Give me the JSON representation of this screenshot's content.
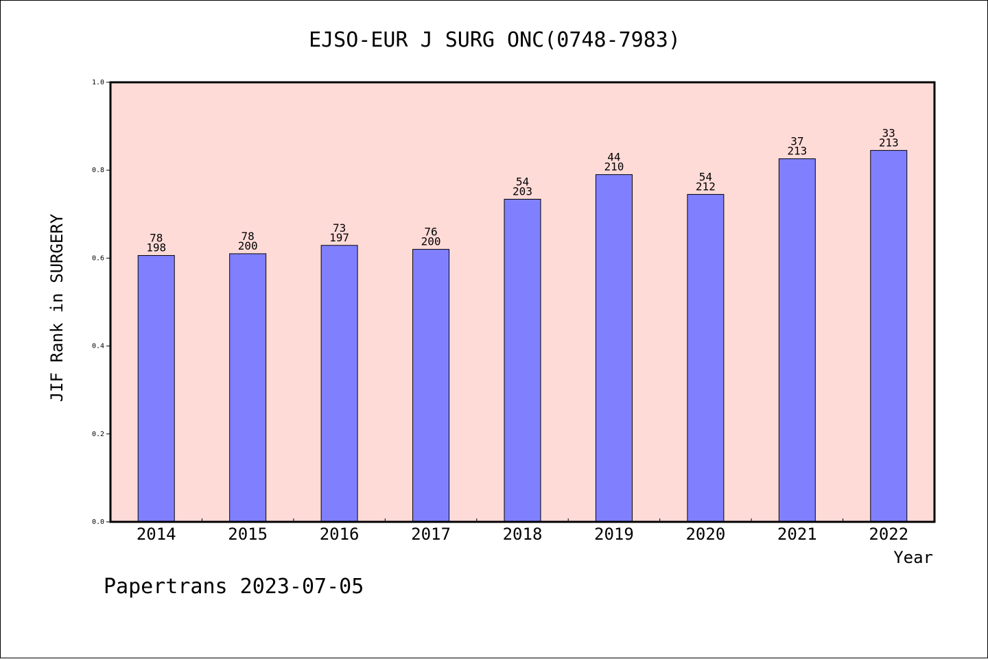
{
  "chart_data": {
    "type": "bar",
    "title": "EJSO-EUR J SURG ONC(0748-7983)",
    "xlabel": "Year",
    "ylabel": "JIF Rank in SURGERY",
    "footer": "Papertrans 2023-07-05",
    "ylim": [
      0.0,
      1.0
    ],
    "yticks": [
      "0.0",
      "0.2",
      "0.4",
      "0.6",
      "0.8",
      "1.0"
    ],
    "categories": [
      "2014",
      "2015",
      "2016",
      "2017",
      "2018",
      "2019",
      "2020",
      "2021",
      "2022"
    ],
    "values": [
      0.606,
      0.61,
      0.629,
      0.62,
      0.734,
      0.79,
      0.745,
      0.826,
      0.845
    ],
    "rank": [
      "78",
      "78",
      "73",
      "76",
      "54",
      "44",
      "54",
      "37",
      "33"
    ],
    "total": [
      "198",
      "200",
      "197",
      "200",
      "203",
      "210",
      "212",
      "213",
      "213"
    ],
    "grid": false,
    "legend": "none",
    "colors": {
      "bar": "#8080ff",
      "plot_bg": "#ffdbd8",
      "axis": "#000000"
    }
  }
}
